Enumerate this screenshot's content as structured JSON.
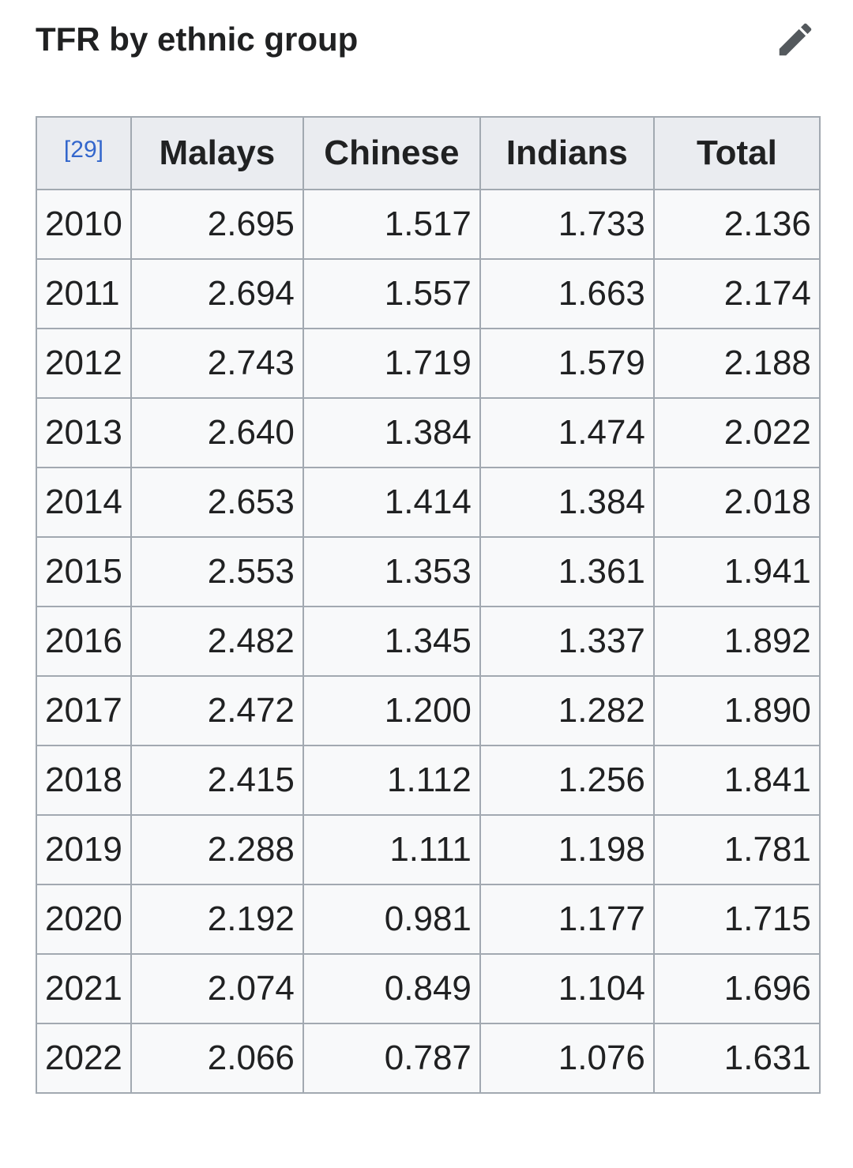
{
  "section": {
    "title": "TFR by ethnic group",
    "edit_icon": "pencil-icon"
  },
  "table": {
    "reference": "[29]",
    "columns": [
      "Malays",
      "Chinese",
      "Indians",
      "Total"
    ],
    "rows": [
      {
        "year": "2010",
        "values": [
          "2.695",
          "1.517",
          "1.733",
          "2.136"
        ]
      },
      {
        "year": "2011",
        "values": [
          "2.694",
          "1.557",
          "1.663",
          "2.174"
        ]
      },
      {
        "year": "2012",
        "values": [
          "2.743",
          "1.719",
          "1.579",
          "2.188"
        ]
      },
      {
        "year": "2013",
        "values": [
          "2.640",
          "1.384",
          "1.474",
          "2.022"
        ]
      },
      {
        "year": "2014",
        "values": [
          "2.653",
          "1.414",
          "1.384",
          "2.018"
        ]
      },
      {
        "year": "2015",
        "values": [
          "2.553",
          "1.353",
          "1.361",
          "1.941"
        ]
      },
      {
        "year": "2016",
        "values": [
          "2.482",
          "1.345",
          "1.337",
          "1.892"
        ]
      },
      {
        "year": "2017",
        "values": [
          "2.472",
          "1.200",
          "1.282",
          "1.890"
        ]
      },
      {
        "year": "2018",
        "values": [
          "2.415",
          "1.112",
          "1.256",
          "1.841"
        ]
      },
      {
        "year": "2019",
        "values": [
          "2.288",
          "1.111",
          "1.198",
          "1.781"
        ]
      },
      {
        "year": "2020",
        "values": [
          "2.192",
          "0.981",
          "1.177",
          "1.715"
        ]
      },
      {
        "year": "2021",
        "values": [
          "2.074",
          "0.849",
          "1.104",
          "1.696"
        ]
      },
      {
        "year": "2022",
        "values": [
          "2.066",
          "0.787",
          "1.076",
          "1.631"
        ]
      }
    ]
  }
}
